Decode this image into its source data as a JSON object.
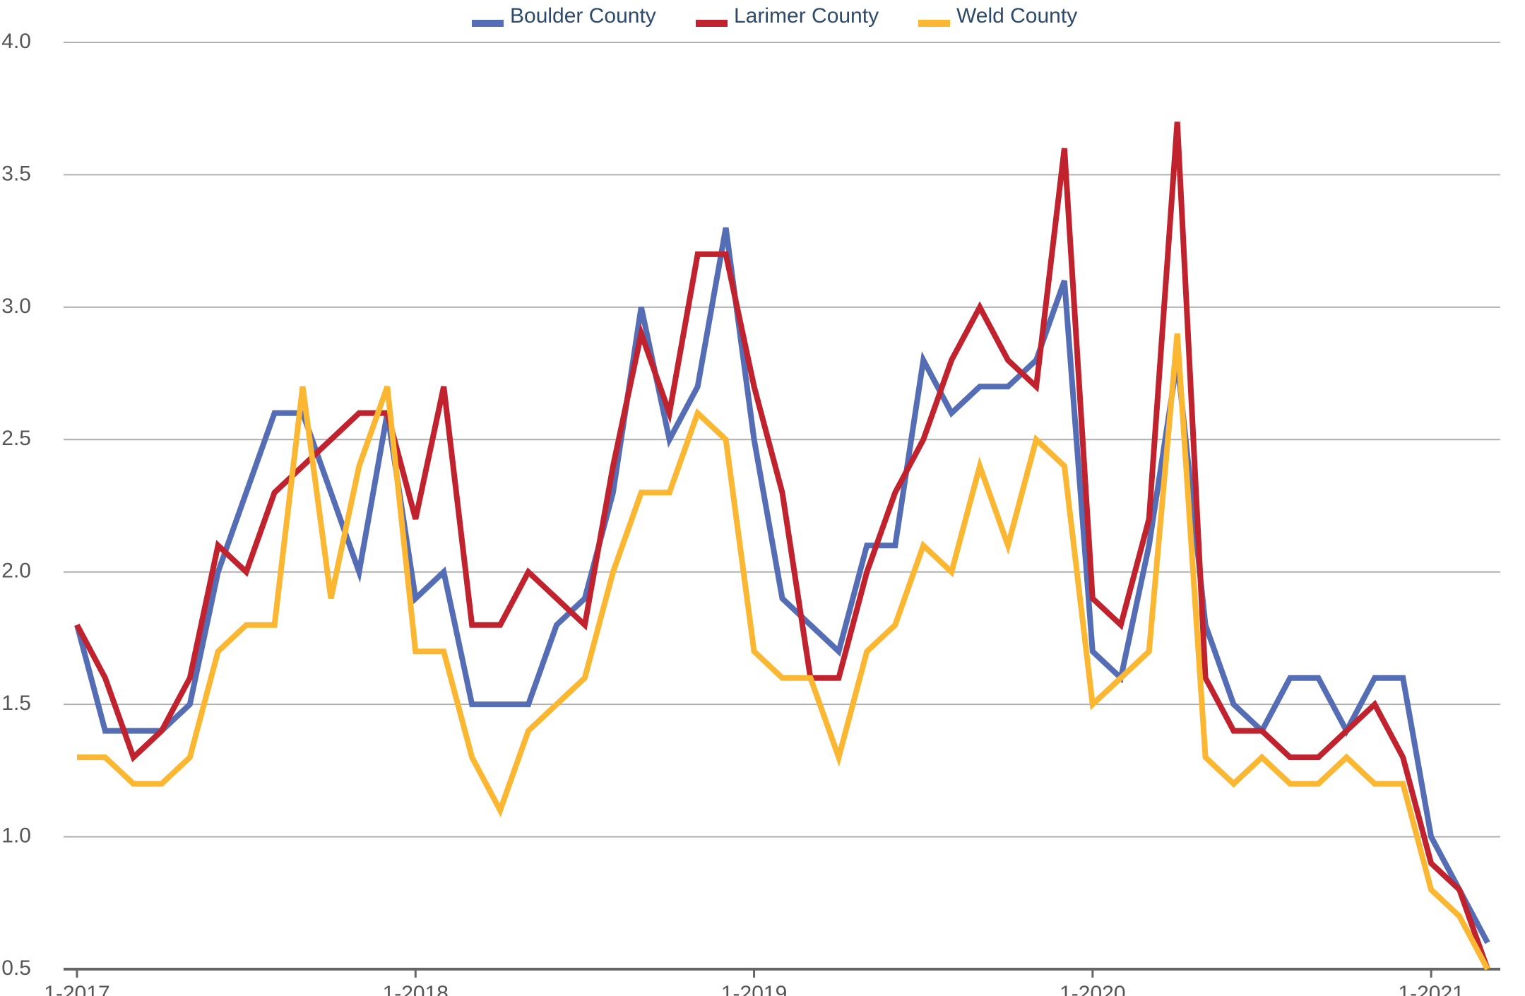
{
  "chart_data": {
    "type": "line",
    "categories": [
      "1-2017",
      null,
      null,
      null,
      null,
      null,
      null,
      null,
      null,
      null,
      null,
      null,
      "1-2018",
      null,
      null,
      null,
      null,
      null,
      null,
      null,
      null,
      null,
      null,
      null,
      "1-2019",
      null,
      null,
      null,
      null,
      null,
      null,
      null,
      null,
      null,
      null,
      null,
      "1-2020",
      null,
      null,
      null,
      null,
      null,
      null,
      null,
      null,
      null,
      null,
      null,
      "1-2021",
      null,
      null
    ],
    "series": [
      {
        "name": "Boulder County",
        "color": "#546db4",
        "values": [
          1.8,
          1.4,
          1.4,
          1.4,
          1.5,
          2.0,
          2.3,
          2.6,
          2.6,
          2.3,
          2.0,
          2.6,
          1.9,
          2.0,
          1.5,
          1.5,
          1.5,
          1.8,
          1.9,
          2.3,
          3.0,
          2.5,
          2.7,
          3.3,
          2.5,
          1.9,
          1.8,
          1.7,
          2.1,
          2.1,
          2.8,
          2.6,
          2.7,
          2.7,
          2.8,
          3.1,
          1.7,
          1.6,
          2.1,
          2.8,
          1.8,
          1.5,
          1.4,
          1.6,
          1.6,
          1.4,
          1.6,
          1.6,
          1.0,
          0.8,
          0.6
        ]
      },
      {
        "name": "Larimer County",
        "color": "#c0222e",
        "values": [
          1.8,
          1.6,
          1.3,
          1.4,
          1.6,
          2.1,
          2.0,
          2.3,
          2.4,
          2.5,
          2.6,
          2.6,
          2.2,
          2.7,
          1.8,
          1.8,
          2.0,
          1.9,
          1.8,
          2.4,
          2.9,
          2.6,
          3.2,
          3.2,
          2.7,
          2.3,
          1.6,
          1.6,
          2.0,
          2.3,
          2.5,
          2.8,
          3.0,
          2.8,
          2.7,
          3.6,
          1.9,
          1.8,
          2.2,
          3.7,
          1.6,
          1.4,
          1.4,
          1.3,
          1.3,
          1.4,
          1.5,
          1.3,
          0.9,
          0.8,
          0.5
        ]
      },
      {
        "name": "Weld County",
        "color": "#fbb731",
        "values": [
          1.3,
          1.3,
          1.2,
          1.2,
          1.3,
          1.7,
          1.8,
          1.8,
          2.7,
          1.9,
          2.4,
          2.7,
          1.7,
          1.7,
          1.3,
          1.1,
          1.4,
          1.5,
          1.6,
          2.0,
          2.3,
          2.3,
          2.6,
          2.5,
          1.7,
          1.6,
          1.6,
          1.3,
          1.7,
          1.8,
          2.1,
          2.0,
          2.4,
          2.1,
          2.5,
          2.4,
          1.5,
          1.6,
          1.7,
          2.9,
          1.3,
          1.2,
          1.3,
          1.2,
          1.2,
          1.3,
          1.2,
          1.2,
          0.8,
          0.7,
          0.5
        ]
      }
    ],
    "ylim": [
      0.5,
      4.0
    ],
    "yticks": [
      0.5,
      {
        "value": 1.0,
        "label": "1.0"
      },
      1.5,
      {
        "value": 2.0,
        "label": "2.0"
      },
      2.5,
      {
        "value": 3.0,
        "label": "3.0"
      },
      3.5,
      {
        "value": 4.0,
        "label": "4.0"
      }
    ],
    "grid": true,
    "legend": "top"
  }
}
